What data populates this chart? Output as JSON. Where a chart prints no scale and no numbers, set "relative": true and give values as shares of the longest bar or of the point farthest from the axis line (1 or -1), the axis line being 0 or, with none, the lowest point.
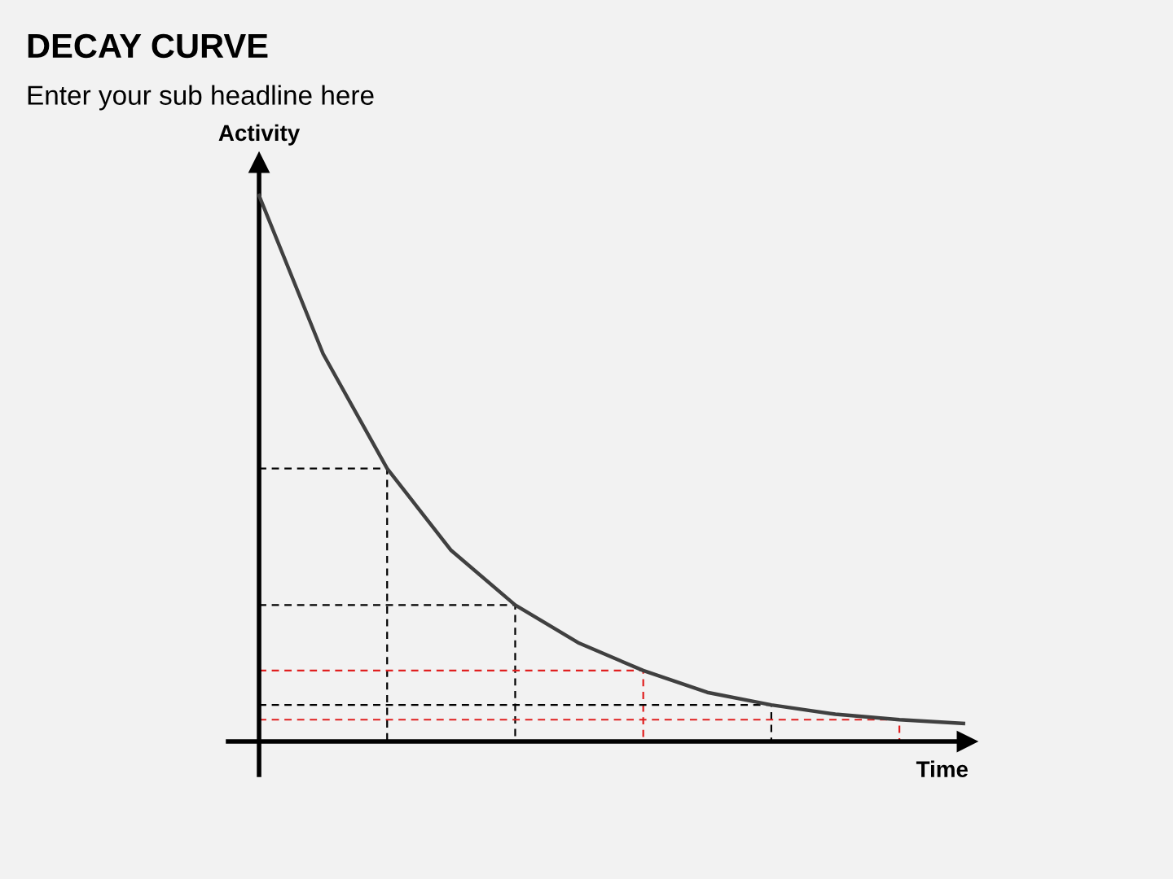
{
  "chart_data": {
    "type": "line",
    "title": "DECAY CURVE",
    "subtitle": "Enter your sub headline here",
    "xlabel": "Time",
    "ylabel": "Activity",
    "relative": true,
    "legend": false,
    "marker": "none",
    "categories": [
      null,
      null,
      null,
      null,
      null,
      null,
      null,
      null,
      null,
      null,
      null,
      null
    ],
    "series": [
      {
        "color": "#404040",
        "line_style": "solid",
        "values": [
          1,
          0.71,
          0.5,
          0.35,
          0.25,
          0.18,
          0.13,
          0.09,
          0.067,
          0.05,
          0.04,
          0.033
        ]
      }
    ],
    "ref_lines": [
      {
        "axis": "y",
        "value": 0.5,
        "color": "#000000",
        "line_style": "dashed"
      },
      {
        "axis": "y",
        "value": 0.25,
        "color": "#000000",
        "line_style": "dashed"
      },
      {
        "axis": "y",
        "value": 0.13,
        "color": "#e02020",
        "line_style": "dashed"
      },
      {
        "axis": "y",
        "value": 0.067,
        "color": "#000000",
        "line_style": "dashed"
      },
      {
        "axis": "y",
        "value": 0.04,
        "color": "#e02020",
        "line_style": "dashed"
      }
    ]
  }
}
